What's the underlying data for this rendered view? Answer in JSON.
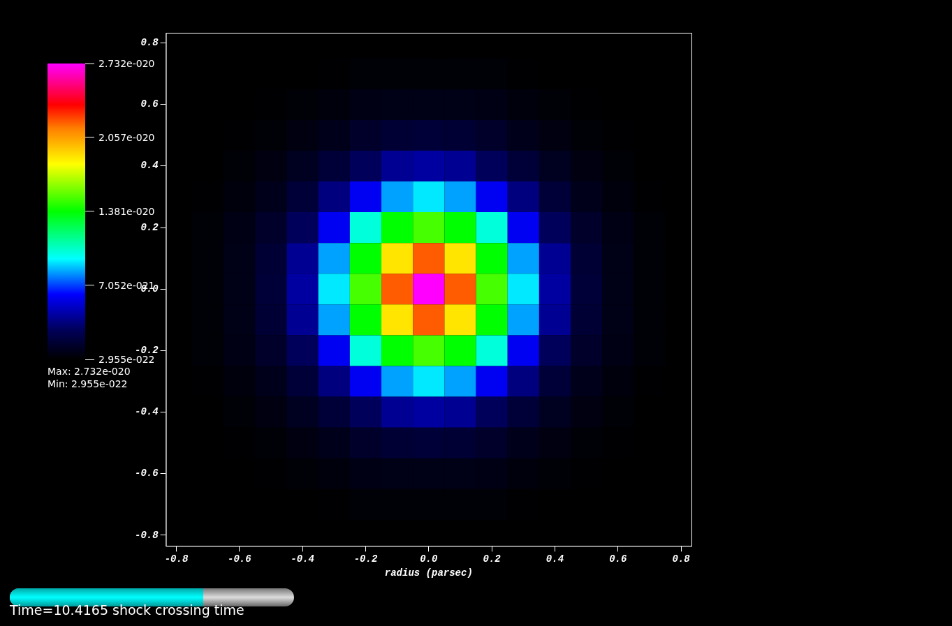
{
  "chart_data": {
    "type": "heatmap",
    "xlabel": "radius (parsec)",
    "grid": false,
    "legend": false,
    "xlim": [
      -0.833,
      0.833
    ],
    "ylim": [
      -0.835,
      0.833
    ],
    "xticks": [
      -0.8,
      -0.6,
      -0.4,
      -0.2,
      {
        "value": 0,
        "label": "0.0"
      },
      0.2,
      0.4,
      0.6,
      0.8
    ],
    "yticks": [
      -0.8,
      -0.6,
      -0.4,
      -0.2,
      {
        "value": 0,
        "label": "0.0"
      },
      0.2,
      0.4,
      0.6,
      0.8
    ],
    "clim": [
      2.955e-22,
      2.732e-20
    ],
    "cticks": [
      {
        "value": 2.955e-22,
        "label": "2.955e-022"
      },
      {
        "value": 7.052e-21,
        "label": "7.052e-021"
      },
      {
        "value": 1.381e-20,
        "label": "1.381e-020"
      },
      {
        "value": 2.057e-20,
        "label": "2.057e-020"
      },
      {
        "value": 2.732e-20,
        "label": "2.732e-020"
      }
    ],
    "annotations": [
      "Max:  2.732e-020",
      "Min:  2.955e-022",
      "Time=10.4165 shock crossing time"
    ],
    "x": [
      -0.8,
      -0.7,
      -0.6,
      -0.5,
      -0.4,
      -0.3,
      -0.2,
      -0.1,
      0,
      0.1,
      0.2,
      0.3,
      0.4,
      0.5,
      0.6,
      0.7,
      0.8
    ],
    "y": [
      0.8,
      0.7,
      0.6,
      0.5,
      0.4,
      0.3,
      0.2,
      0.1,
      0,
      -0.1,
      -0.2,
      -0.3,
      -0.4,
      -0.5,
      -0.6,
      -0.7,
      -0.8
    ],
    "cells": [
      [
        3e-22,
        3e-22,
        3e-22,
        3e-22,
        3e-22,
        3e-22,
        3e-22,
        3e-22,
        3e-22,
        3e-22,
        3e-22,
        3e-22,
        3e-22,
        3e-22,
        3e-22,
        3e-22,
        3e-22
      ],
      [
        3e-22,
        3e-22,
        3e-22,
        3e-22,
        3e-22,
        4e-22,
        5e-22,
        5e-22,
        5e-22,
        5e-22,
        5e-22,
        4e-22,
        3e-22,
        3e-22,
        3e-22,
        3e-22,
        3e-22
      ],
      [
        3e-22,
        3e-22,
        3e-22,
        4e-22,
        5e-22,
        7e-22,
        9e-22,
        1e-21,
        1e-21,
        1e-21,
        9e-22,
        7e-22,
        5e-22,
        4e-22,
        3e-22,
        3e-22,
        3e-22
      ],
      [
        3e-22,
        3e-22,
        4e-22,
        5e-22,
        8e-22,
        1.1e-21,
        1.6e-21,
        1.9e-21,
        2e-21,
        1.9e-21,
        1.6e-21,
        1.1e-21,
        8e-22,
        5e-22,
        4e-22,
        3e-22,
        3e-22
      ],
      [
        3e-22,
        3e-22,
        5e-22,
        8e-22,
        1.3e-21,
        2e-21,
        3e-21,
        4.1e-21,
        4.4e-21,
        4.1e-21,
        3e-21,
        2e-21,
        1.3e-21,
        8e-22,
        5e-22,
        3e-22,
        3e-22
      ],
      [
        3e-22,
        4e-22,
        7e-22,
        1.1e-21,
        2e-21,
        3.7e-21,
        6e-21,
        8.3e-21,
        9.2e-21,
        8.3e-21,
        6e-21,
        3.7e-21,
        2e-21,
        1.1e-21,
        7e-22,
        4e-22,
        3e-22
      ],
      [
        3e-22,
        5e-22,
        9e-22,
        1.6e-21,
        3e-21,
        6e-21,
        1.01e-20,
        1.38e-20,
        1.5e-20,
        1.38e-20,
        1.01e-20,
        6e-21,
        3e-21,
        1.6e-21,
        9e-22,
        5e-22,
        3e-22
      ],
      [
        3e-22,
        5e-22,
        1e-21,
        1.9e-21,
        4.1e-21,
        8.3e-21,
        1.38e-20,
        1.88e-20,
        2.2e-20,
        1.88e-20,
        1.38e-20,
        8.3e-21,
        4.1e-21,
        1.9e-21,
        1e-21,
        5e-22,
        3e-22
      ],
      [
        3e-22,
        5e-22,
        1e-21,
        2e-21,
        4.4e-21,
        9.2e-21,
        1.5e-20,
        2.2e-20,
        2.732e-20,
        2.2e-20,
        1.5e-20,
        9.2e-21,
        4.4e-21,
        2e-21,
        1e-21,
        5e-22,
        3e-22
      ],
      [
        3e-22,
        5e-22,
        1e-21,
        1.9e-21,
        4.1e-21,
        8.3e-21,
        1.38e-20,
        1.88e-20,
        2.2e-20,
        1.88e-20,
        1.38e-20,
        8.3e-21,
        4.1e-21,
        1.9e-21,
        1e-21,
        5e-22,
        3e-22
      ],
      [
        3e-22,
        5e-22,
        9e-22,
        1.6e-21,
        3e-21,
        6e-21,
        1.01e-20,
        1.38e-20,
        1.5e-20,
        1.38e-20,
        1.01e-20,
        6e-21,
        3e-21,
        1.6e-21,
        9e-22,
        5e-22,
        3e-22
      ],
      [
        3e-22,
        4e-22,
        7e-22,
        1.1e-21,
        2e-21,
        3.7e-21,
        6e-21,
        8.3e-21,
        9.2e-21,
        8.3e-21,
        6e-21,
        3.7e-21,
        2e-21,
        1.1e-21,
        7e-22,
        4e-22,
        3e-22
      ],
      [
        3e-22,
        3e-22,
        5e-22,
        8e-22,
        1.3e-21,
        2e-21,
        3e-21,
        4.1e-21,
        4.4e-21,
        4.1e-21,
        3e-21,
        2e-21,
        1.3e-21,
        8e-22,
        5e-22,
        3e-22,
        3e-22
      ],
      [
        3e-22,
        3e-22,
        4e-22,
        5e-22,
        8e-22,
        1.1e-21,
        1.6e-21,
        1.9e-21,
        2e-21,
        1.9e-21,
        1.6e-21,
        1.1e-21,
        8e-22,
        5e-22,
        4e-22,
        3e-22,
        3e-22
      ],
      [
        3e-22,
        3e-22,
        3e-22,
        4e-22,
        5e-22,
        7e-22,
        9e-22,
        1e-21,
        1e-21,
        1e-21,
        9e-22,
        7e-22,
        5e-22,
        4e-22,
        3e-22,
        3e-22,
        3e-22
      ],
      [
        3e-22,
        3e-22,
        3e-22,
        3e-22,
        3e-22,
        4e-22,
        5e-22,
        5e-22,
        5e-22,
        5e-22,
        5e-22,
        4e-22,
        3e-22,
        3e-22,
        3e-22,
        3e-22,
        3e-22
      ],
      [
        3e-22,
        3e-22,
        3e-22,
        3e-22,
        3e-22,
        3e-22,
        3e-22,
        3e-22,
        3e-22,
        3e-22,
        3e-22,
        3e-22,
        3e-22,
        3e-22,
        3e-22,
        3e-22,
        3e-22
      ]
    ]
  }
}
